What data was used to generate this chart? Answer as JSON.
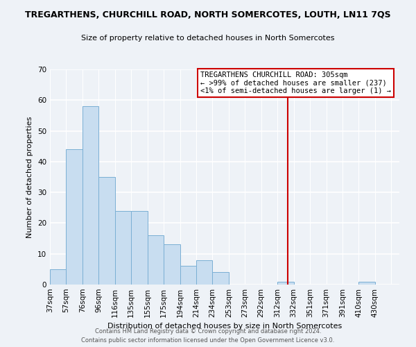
{
  "title": "TREGARTHENS, CHURCHILL ROAD, NORTH SOMERCOTES, LOUTH, LN11 7QS",
  "subtitle": "Size of property relative to detached houses in North Somercotes",
  "xlabel": "Distribution of detached houses by size in North Somercotes",
  "ylabel": "Number of detached properties",
  "bin_labels": [
    "37sqm",
    "57sqm",
    "76sqm",
    "96sqm",
    "116sqm",
    "135sqm",
    "155sqm",
    "175sqm",
    "194sqm",
    "214sqm",
    "234sqm",
    "253sqm",
    "273sqm",
    "292sqm",
    "312sqm",
    "332sqm",
    "351sqm",
    "371sqm",
    "391sqm",
    "410sqm",
    "430sqm"
  ],
  "bar_heights": [
    5,
    44,
    58,
    35,
    24,
    24,
    16,
    13,
    6,
    8,
    4,
    0,
    0,
    0,
    1,
    0,
    0,
    0,
    0,
    1,
    0
  ],
  "bar_color": "#c8ddf0",
  "bar_edge_color": "#7aafd4",
  "vline_color": "#cc0000",
  "ylim": [
    0,
    70
  ],
  "yticks": [
    0,
    10,
    20,
    30,
    40,
    50,
    60,
    70
  ],
  "annotation_title": "TREGARTHENS CHURCHILL ROAD: 305sqm",
  "annotation_line1": "← >99% of detached houses are smaller (237)",
  "annotation_line2": "<1% of semi-detached houses are larger (1) →",
  "footer_line1": "Contains HM Land Registry data © Crown copyright and database right 2024.",
  "footer_line2": "Contains public sector information licensed under the Open Government Licence v3.0.",
  "background_color": "#eef2f7",
  "title_fontsize": 9,
  "subtitle_fontsize": 8,
  "axis_label_fontsize": 8,
  "tick_fontsize": 7.5,
  "annotation_fontsize": 7.5,
  "footer_fontsize": 6
}
